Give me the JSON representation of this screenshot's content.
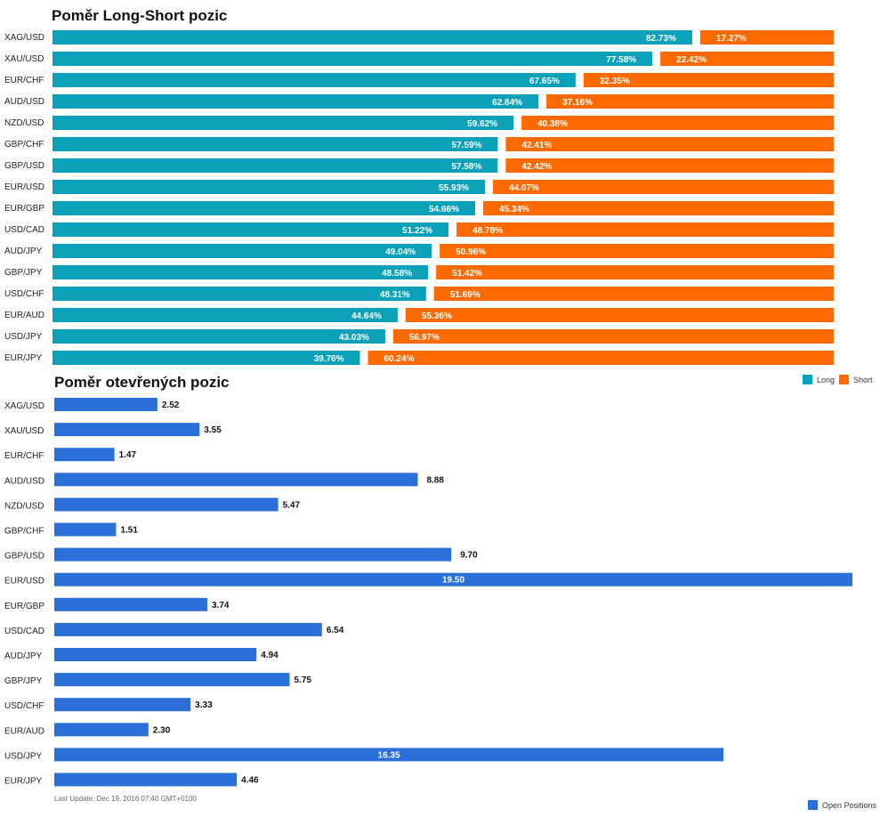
{
  "chart_data": [
    {
      "type": "bar",
      "stacked": true,
      "orientation": "horizontal",
      "title": "Poměr Long-Short pozic",
      "categories": [
        "XAG/USD",
        "XAU/USD",
        "EUR/CHF",
        "AUD/USD",
        "NZD/USD",
        "GBP/CHF",
        "GBP/USD",
        "EUR/USD",
        "EUR/GBP",
        "USD/CAD",
        "AUD/JPY",
        "GBP/JPY",
        "USD/CHF",
        "EUR/AUD",
        "USD/JPY",
        "EUR/JPY"
      ],
      "series": [
        {
          "name": "Long",
          "color": "#0aa1b9",
          "values": [
            82.73,
            77.58,
            67.65,
            62.84,
            59.62,
            57.59,
            57.58,
            55.93,
            54.66,
            51.22,
            49.04,
            48.58,
            48.31,
            44.64,
            43.03,
            39.76
          ]
        },
        {
          "name": "Short",
          "color": "#ff6a00",
          "values": [
            17.27,
            22.42,
            32.35,
            37.16,
            40.38,
            42.41,
            42.42,
            44.07,
            45.34,
            48.78,
            50.96,
            51.42,
            51.69,
            55.36,
            56.97,
            60.24
          ]
        }
      ],
      "labels": {
        "long": [
          "82.73%",
          "77.58%",
          "67.65%",
          "62.84%",
          "59.62%",
          "57.59%",
          "57.58%",
          "55.93%",
          "54.66%",
          "51.22%",
          "49.04%",
          "48.58%",
          "48.31%",
          "44.64%",
          "43.03%",
          "39.76%"
        ],
        "short": [
          "17.27%",
          "22.42%",
          "32.35%",
          "37.16%",
          "40.38%",
          "42.41%",
          "42.42%",
          "44.07%",
          "45.34%",
          "48.78%",
          "50.96%",
          "51.42%",
          "51.69%",
          "55.36%",
          "56.97%",
          "60.24%"
        ]
      },
      "legend": "top-right",
      "xlim": [
        0,
        100
      ]
    },
    {
      "type": "bar",
      "orientation": "horizontal",
      "title": "Poměr otevřených pozic",
      "categories": [
        "XAG/USD",
        "XAU/USD",
        "EUR/CHF",
        "AUD/USD",
        "NZD/USD",
        "GBP/CHF",
        "GBP/USD",
        "EUR/USD",
        "EUR/GBP",
        "USD/CAD",
        "AUD/JPY",
        "GBP/JPY",
        "USD/CHF",
        "EUR/AUD",
        "USD/JPY",
        "EUR/JPY"
      ],
      "series": [
        {
          "name": "Open Positions",
          "color": "#2b6fd8",
          "values": [
            2.52,
            3.55,
            1.47,
            8.88,
            5.47,
            1.51,
            9.7,
            19.5,
            3.74,
            6.54,
            4.94,
            5.75,
            3.33,
            2.3,
            16.35,
            4.46
          ]
        }
      ],
      "labels": [
        "2.52",
        "3.55",
        "1.47",
        "8.88",
        "5.47",
        "1.51",
        "9.70",
        "19.50",
        "3.74",
        "6.54",
        "4.94",
        "5.75",
        "3.33",
        "2.30",
        "16.35",
        "4.46"
      ],
      "legend": "bottom-right",
      "xlim": [
        0,
        19.5
      ]
    }
  ],
  "footer": {
    "last_update": "Last Update: Dec 19, 2016 07:40 GMT+0100"
  }
}
